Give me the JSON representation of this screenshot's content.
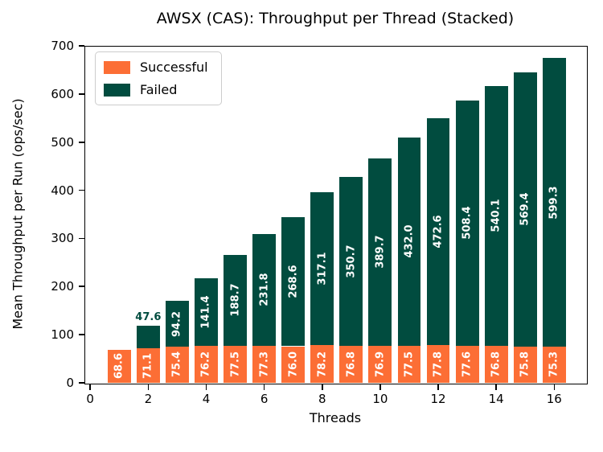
{
  "chart_data": {
    "type": "bar",
    "stacked": true,
    "title": "AWSX (CAS): Throughput per Thread (Stacked)",
    "xlabel": "Threads",
    "ylabel": "Mean Throughput per Run (ops/sec)",
    "categories": [
      1,
      2,
      3,
      4,
      5,
      6,
      7,
      8,
      9,
      10,
      11,
      12,
      13,
      14,
      15,
      16
    ],
    "series": [
      {
        "name": "Successful",
        "color": "#FC6E35",
        "values": [
          68.6,
          71.1,
          75.4,
          76.2,
          77.5,
          77.3,
          76.0,
          78.2,
          76.8,
          76.9,
          77.5,
          77.8,
          77.6,
          76.8,
          75.8,
          75.3
        ]
      },
      {
        "name": "Failed",
        "color": "#014C3F",
        "values": [
          0,
          47.6,
          94.2,
          141.4,
          188.7,
          231.8,
          268.6,
          317.1,
          350.7,
          389.7,
          432.0,
          472.6,
          508.4,
          540.1,
          569.4,
          599.3
        ]
      }
    ],
    "xlim": [
      -0.2,
      17.1
    ],
    "ylim": [
      0,
      700
    ],
    "xticks": [
      0,
      2,
      4,
      6,
      8,
      10,
      12,
      14,
      16
    ],
    "yticks": [
      0,
      100,
      200,
      300,
      400,
      500,
      600,
      700
    ],
    "bar_width": 0.8,
    "grid": false,
    "legend_position": "upper left",
    "inside_label_color": "#ffffff",
    "axis_color": "#000000"
  }
}
